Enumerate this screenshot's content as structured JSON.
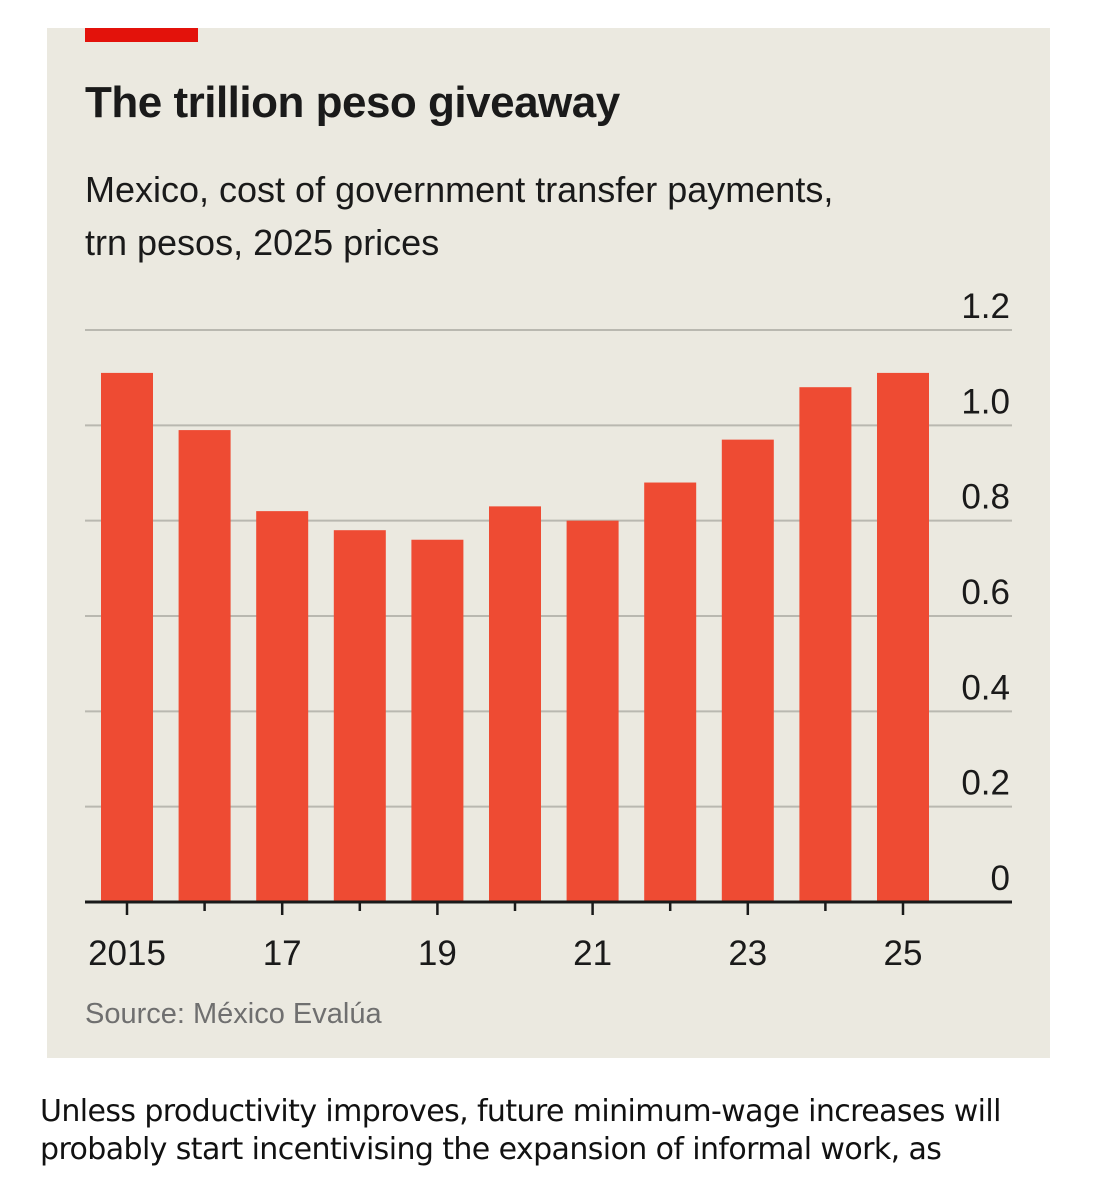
{
  "article": {
    "body_text": "Unless productivity improves, future minimum-wage increases will probably start incentivising the expansion of informal work, as"
  },
  "colors": {
    "bar": "#ee4b33",
    "accent_tag": "#e3120b",
    "background": "#ebe9e0",
    "gridline": "#b9b8b0"
  },
  "chart_data": {
    "type": "bar",
    "title": "The trillion peso giveaway",
    "subtitle": "Mexico, cost of government transfer payments, trn pesos, 2025 prices",
    "source": "Source: México Evalúa",
    "xlabel": "",
    "ylabel": "trn pesos, 2025 prices",
    "categories": [
      "2015",
      "2016",
      "2017",
      "2018",
      "2019",
      "2020",
      "2021",
      "2022",
      "2023",
      "2024",
      "2025"
    ],
    "values": [
      1.11,
      0.99,
      0.82,
      0.78,
      0.76,
      0.83,
      0.8,
      0.88,
      0.97,
      1.08,
      1.11
    ],
    "x_tick_labels": [
      "2015",
      "",
      "17",
      "",
      "19",
      "",
      "21",
      "",
      "23",
      "",
      "25"
    ],
    "y_ticks": [
      0,
      0.2,
      0.4,
      0.6,
      0.8,
      1.0,
      1.2
    ],
    "y_tick_labels": [
      "0",
      "0.2",
      "0.4",
      "0.6",
      "0.8",
      "1.0",
      "1.2"
    ],
    "ylim": [
      0,
      1.2
    ],
    "grid": true,
    "y_axis_side": "right"
  }
}
